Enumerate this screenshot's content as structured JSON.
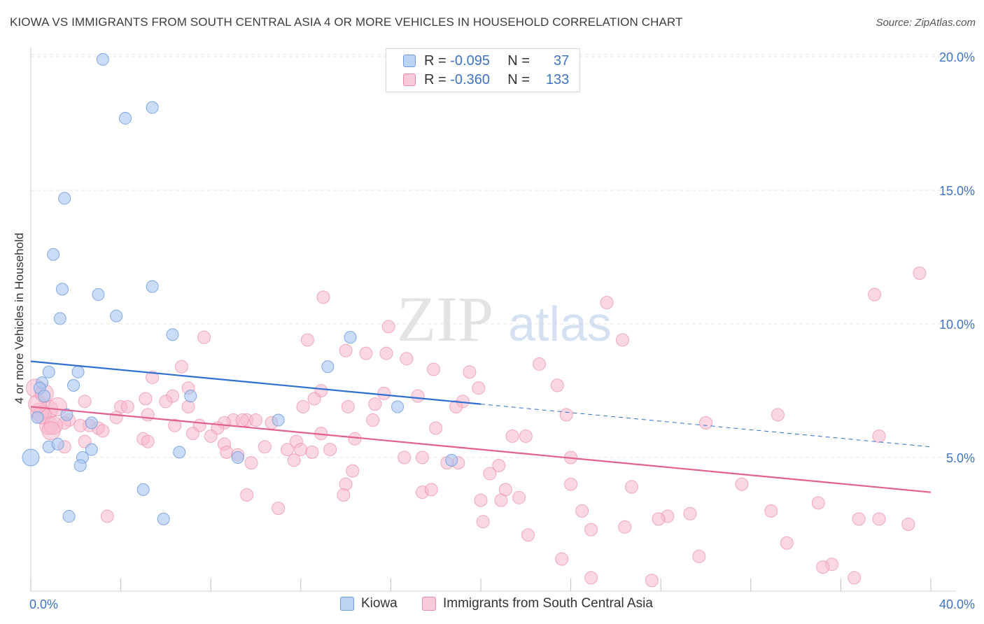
{
  "header": {
    "title": "KIOWA VS IMMIGRANTS FROM SOUTH CENTRAL ASIA 4 OR MORE VEHICLES IN HOUSEHOLD CORRELATION CHART",
    "source": "Source: ZipAtlas.com"
  },
  "legend_stats": {
    "row1": {
      "r_label": "R =",
      "r_value": "-0.095",
      "n_label": "N =",
      "n_value": "37"
    },
    "row2": {
      "r_label": "R =",
      "r_value": "-0.360",
      "n_label": "N =",
      "n_value": "133"
    }
  },
  "legend_bottom": {
    "series1": "Kiowa",
    "series2": "Immigrants from South Central Asia"
  },
  "watermark": {
    "zip": "ZIP",
    "atlas": "atlas"
  },
  "colors": {
    "kiowa_fill": "#a9c7f0",
    "kiowa_stroke": "#6d9be0",
    "kiowa_line": "#2f6fd0",
    "imm_fill": "#f6b8cc",
    "imm_stroke": "#ec89a8",
    "imm_line": "#e2608f",
    "tick_text": "#3f73c6",
    "grid": "#e4e4e4"
  },
  "chart_data": {
    "type": "scatter",
    "title": "KIOWA VS IMMIGRANTS FROM SOUTH CENTRAL ASIA 4 OR MORE VEHICLES IN HOUSEHOLD CORRELATION CHART",
    "xlabel": "",
    "ylabel": "4 or more Vehicles in Household",
    "xlim": [
      0,
      40
    ],
    "ylim": [
      0,
      20.5
    ],
    "x_tick_labels": [
      {
        "value": 0,
        "label": "0.0%"
      },
      {
        "value": 40,
        "label": "40.0%"
      }
    ],
    "y_tick_labels": [
      {
        "value": 5,
        "label": "5.0%"
      },
      {
        "value": 10,
        "label": "10.0%"
      },
      {
        "value": 15,
        "label": "15.0%"
      },
      {
        "value": 20,
        "label": "20.0%"
      }
    ],
    "grid": "horizontal dashed",
    "legend": "top-center",
    "series": [
      {
        "name": "Kiowa",
        "r": -0.095,
        "n": 37,
        "trend": {
          "x": [
            0,
            20
          ],
          "y": [
            8.6,
            7.0
          ]
        },
        "trend_extension": {
          "x": [
            20,
            40
          ],
          "y": [
            7.0,
            5.4
          ]
        },
        "points": [
          [
            3.2,
            19.9
          ],
          [
            5.4,
            18.1
          ],
          [
            4.2,
            17.7
          ],
          [
            1.5,
            14.7
          ],
          [
            1.0,
            12.6
          ],
          [
            1.4,
            11.3
          ],
          [
            5.4,
            11.4
          ],
          [
            3.0,
            11.1
          ],
          [
            1.3,
            10.2
          ],
          [
            3.8,
            10.3
          ],
          [
            6.3,
            9.6
          ],
          [
            14.2,
            9.5
          ],
          [
            13.2,
            8.4
          ],
          [
            0.8,
            8.2
          ],
          [
            2.1,
            8.2
          ],
          [
            0.5,
            7.8
          ],
          [
            0.4,
            7.6
          ],
          [
            1.9,
            7.7
          ],
          [
            0.6,
            7.3
          ],
          [
            7.1,
            7.3
          ],
          [
            16.3,
            6.9
          ],
          [
            0.3,
            6.5
          ],
          [
            1.6,
            6.6
          ],
          [
            2.7,
            6.3
          ],
          [
            11.0,
            6.4
          ],
          [
            0.8,
            5.4
          ],
          [
            1.2,
            5.5
          ],
          [
            2.7,
            5.3
          ],
          [
            0.0,
            5.0
          ],
          [
            2.3,
            5.0
          ],
          [
            6.6,
            5.2
          ],
          [
            9.2,
            5.0
          ],
          [
            18.7,
            4.9
          ],
          [
            2.2,
            4.7
          ],
          [
            5.0,
            3.8
          ],
          [
            1.7,
            2.8
          ],
          [
            5.9,
            2.7
          ]
        ]
      },
      {
        "name": "Immigrants from South Central Asia",
        "r": -0.36,
        "n": 133,
        "trend": {
          "x": [
            0,
            40
          ],
          "y": [
            6.9,
            3.7
          ]
        },
        "points": [
          [
            39.5,
            11.9
          ],
          [
            37.5,
            11.1
          ],
          [
            13.0,
            11.0
          ],
          [
            25.6,
            10.8
          ],
          [
            15.9,
            9.9
          ],
          [
            7.7,
            9.5
          ],
          [
            12.3,
            9.4
          ],
          [
            26.3,
            9.4
          ],
          [
            14.0,
            9.0
          ],
          [
            14.9,
            8.9
          ],
          [
            15.8,
            8.9
          ],
          [
            16.7,
            8.7
          ],
          [
            22.6,
            8.5
          ],
          [
            6.7,
            8.4
          ],
          [
            17.9,
            8.3
          ],
          [
            19.5,
            8.2
          ],
          [
            5.4,
            8.0
          ],
          [
            23.4,
            7.7
          ],
          [
            19.9,
            7.6
          ],
          [
            7.0,
            7.6
          ],
          [
            12.9,
            7.5
          ],
          [
            15.7,
            7.4
          ],
          [
            17.2,
            7.3
          ],
          [
            6.3,
            7.3
          ],
          [
            12.6,
            7.2
          ],
          [
            5.1,
            7.2
          ],
          [
            6.0,
            7.1
          ],
          [
            19.2,
            7.1
          ],
          [
            2.4,
            7.1
          ],
          [
            15.3,
            7.0
          ],
          [
            4.0,
            6.9
          ],
          [
            4.3,
            6.9
          ],
          [
            7.0,
            6.9
          ],
          [
            12.1,
            6.9
          ],
          [
            14.1,
            6.9
          ],
          [
            18.9,
            6.9
          ],
          [
            0.8,
            6.8
          ],
          [
            0.4,
            6.7
          ],
          [
            33.2,
            6.6
          ],
          [
            23.8,
            6.6
          ],
          [
            5.2,
            6.6
          ],
          [
            3.8,
            6.5
          ],
          [
            1.7,
            6.4
          ],
          [
            9.0,
            6.4
          ],
          [
            9.6,
            6.4
          ],
          [
            10.0,
            6.4
          ],
          [
            9.4,
            6.4
          ],
          [
            15.2,
            6.4
          ],
          [
            10.7,
            6.3
          ],
          [
            8.6,
            6.3
          ],
          [
            30.0,
            6.3
          ],
          [
            2.6,
            6.2
          ],
          [
            3.0,
            6.1
          ],
          [
            6.4,
            6.2
          ],
          [
            7.5,
            6.2
          ],
          [
            8.3,
            6.1
          ],
          [
            2.2,
            6.2
          ],
          [
            0.8,
            6.2
          ],
          [
            1.5,
            6.3
          ],
          [
            18.0,
            6.1
          ],
          [
            3.2,
            6.0
          ],
          [
            12.9,
            5.9
          ],
          [
            7.2,
            5.9
          ],
          [
            8.0,
            5.8
          ],
          [
            21.4,
            5.8
          ],
          [
            22.0,
            5.8
          ],
          [
            5.0,
            5.7
          ],
          [
            11.8,
            5.6
          ],
          [
            14.4,
            5.7
          ],
          [
            5.2,
            5.6
          ],
          [
            37.7,
            5.8
          ],
          [
            2.4,
            5.6
          ],
          [
            8.6,
            5.5
          ],
          [
            1.5,
            5.4
          ],
          [
            10.4,
            5.4
          ],
          [
            12.0,
            5.3
          ],
          [
            13.3,
            5.3
          ],
          [
            11.4,
            5.3
          ],
          [
            12.5,
            5.2
          ],
          [
            8.7,
            5.2
          ],
          [
            9.2,
            5.1
          ],
          [
            24.0,
            5.0
          ],
          [
            16.6,
            5.0
          ],
          [
            17.4,
            5.0
          ],
          [
            11.7,
            4.9
          ],
          [
            9.8,
            4.8
          ],
          [
            19.0,
            4.8
          ],
          [
            20.8,
            4.7
          ],
          [
            14.3,
            4.5
          ],
          [
            18.5,
            4.8
          ],
          [
            20.4,
            4.4
          ],
          [
            14.0,
            4.0
          ],
          [
            24.0,
            4.0
          ],
          [
            26.7,
            3.9
          ],
          [
            31.6,
            4.0
          ],
          [
            21.1,
            3.8
          ],
          [
            17.4,
            3.7
          ],
          [
            17.8,
            3.8
          ],
          [
            13.9,
            3.6
          ],
          [
            9.6,
            3.6
          ],
          [
            20.0,
            3.4
          ],
          [
            20.9,
            3.4
          ],
          [
            21.7,
            3.5
          ],
          [
            35.0,
            3.3
          ],
          [
            11.0,
            3.1
          ],
          [
            24.5,
            3.0
          ],
          [
            32.9,
            3.0
          ],
          [
            3.4,
            2.8
          ],
          [
            28.3,
            2.8
          ],
          [
            29.3,
            2.9
          ],
          [
            27.9,
            2.7
          ],
          [
            36.8,
            2.7
          ],
          [
            37.7,
            2.7
          ],
          [
            20.1,
            2.6
          ],
          [
            26.4,
            2.4
          ],
          [
            39.0,
            2.5
          ],
          [
            24.9,
            2.3
          ],
          [
            22.1,
            2.1
          ],
          [
            33.6,
            1.8
          ],
          [
            29.7,
            1.3
          ],
          [
            23.6,
            1.2
          ],
          [
            35.6,
            1.0
          ],
          [
            35.2,
            0.9
          ],
          [
            24.9,
            0.5
          ],
          [
            27.6,
            0.4
          ],
          [
            36.6,
            0.5
          ],
          [
            0.2,
            7.6
          ],
          [
            0.5,
            6.6
          ],
          [
            1.0,
            6.2
          ],
          [
            0.3,
            7.0
          ],
          [
            1.2,
            6.9
          ],
          [
            0.6,
            7.4
          ],
          [
            0.9,
            6.0
          ]
        ]
      }
    ]
  }
}
